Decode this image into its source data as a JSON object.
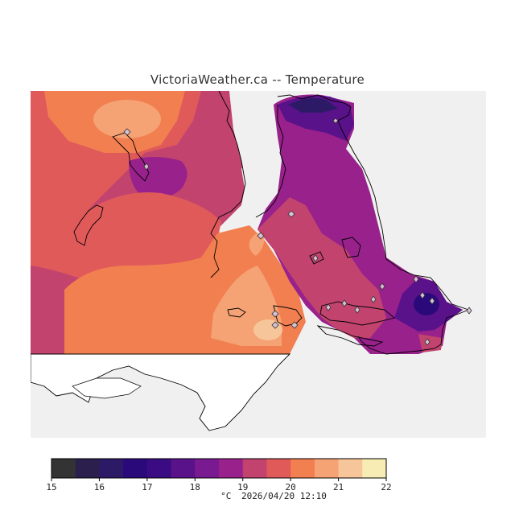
{
  "title": "VictoriaWeather.ca -- Temperature",
  "colorbar": {
    "unit": "°C",
    "ticks": [
      "15",
      "16",
      "17",
      "18",
      "19",
      "20",
      "21",
      "22"
    ],
    "colors": [
      "#333333",
      "#2a1f4d",
      "#2d1a66",
      "#2a0a7a",
      "#3a0b82",
      "#5a128a",
      "#7a1a90",
      "#98218c",
      "#c1436e",
      "#e05a5a",
      "#f27f50",
      "#f5a274",
      "#f7c59a",
      "#f8ecb5"
    ]
  },
  "timestamp": "2026/04/20 12:10",
  "colors": {
    "no_data": "#f0f0f0",
    "coastline": "#000000",
    "station_marker": "#c9b6c8"
  }
}
